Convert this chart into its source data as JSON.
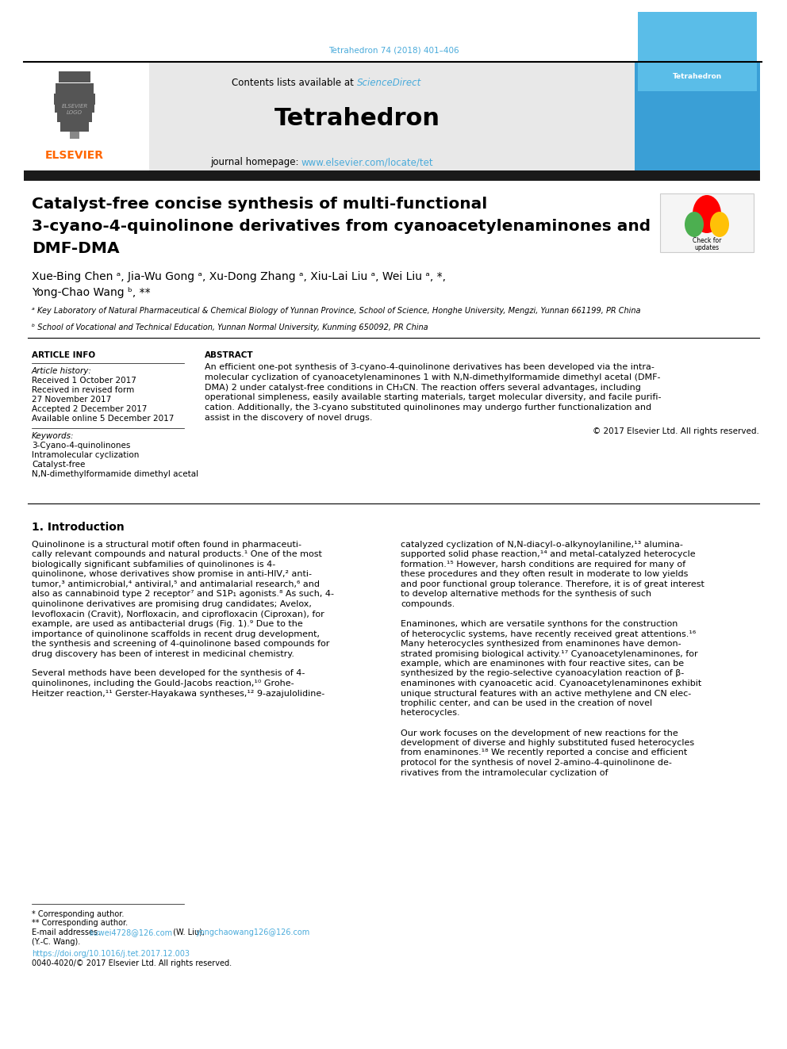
{
  "page_width": 9.92,
  "page_height": 13.23,
  "bg_color": "#ffffff",
  "header_top_text": "Tetrahedron 74 (2018) 401–406",
  "header_top_color": "#4AABDB",
  "header_bg_color": "#E8E8E8",
  "header_journal_name": "Tetrahedron",
  "header_sciencedirect_color": "#4AABDB",
  "header_homepage_url": "www.elsevier.com/locate/tet",
  "header_homepage_url_color": "#4AABDB",
  "elsevier_color": "#FF6600",
  "black_bar_color": "#1a1a1a",
  "article_title_line1": "Catalyst-free concise synthesis of multi-functional",
  "article_title_line2": "3-cyano-4-quinolinone derivatives from cyanoacetylenaminones and",
  "article_title_line3": "DMF-DMA",
  "affil_a": "ᵃ Key Laboratory of Natural Pharmaceutical & Chemical Biology of Yunnan Province, School of Science, Honghe University, Mengzi, Yunnan 661199, PR China",
  "affil_b": "ᵇ School of Vocational and Technical Education, Yunnan Normal University, Kunming 650092, PR China",
  "article_info_header": "ARTICLE INFO",
  "article_history_header": "Article history:",
  "received_1": "Received 1 October 2017",
  "received_2": "Received in revised form",
  "received_2b": "27 November 2017",
  "accepted": "Accepted 2 December 2017",
  "available": "Available online 5 December 2017",
  "keywords_header": "Keywords:",
  "keyword1": "3-Cyano-4-quinolinones",
  "keyword2": "Intramolecular cyclization",
  "keyword3": "Catalyst-free",
  "keyword4": "N,N-dimethylformamide dimethyl acetal",
  "abstract_header": "ABSTRACT",
  "copyright_text": "© 2017 Elsevier Ltd. All rights reserved.",
  "intro_header": "1. Introduction",
  "footnote_star": "* Corresponding author.",
  "footnote_dstar": "** Corresponding author.",
  "doi_text": "https://doi.org/10.1016/j.tet.2017.12.003",
  "issn_text": "0040-4020/© 2017 Elsevier Ltd. All rights reserved.",
  "link_color": "#4AABDB",
  "abstract_lines": [
    "An efficient one-pot synthesis of 3-cyano-4-quinolinone derivatives has been developed via the intra-",
    "molecular cyclization of cyanoacetylenaminones 1 with N,N-dimethylformamide dimethyl acetal (DMF-",
    "DMA) 2 under catalyst-free conditions in CH₃CN. The reaction offers several advantages, including",
    "operational simpleness, easily available starting materials, target molecular diversity, and facile purifi-",
    "cation. Additionally, the 3-cyano substituted quinolinones may undergo further functionalization and",
    "assist in the discovery of novel drugs."
  ],
  "intro_col1_lines": [
    "Quinolinone is a structural motif often found in pharmaceuti-",
    "cally relevant compounds and natural products.¹ One of the most",
    "biologically significant subfamilies of quinolinones is 4-",
    "quinolinone, whose derivatives show promise in anti-HIV,² anti-",
    "tumor,³ antimicrobial,⁴ antiviral,⁵ and antimalarial research,⁶ and",
    "also as cannabinoid type 2 receptor⁷ and S1P₁ agonists.⁸ As such, 4-",
    "quinolinone derivatives are promising drug candidates; Avelox,",
    "levofloxacin (Cravit), Norfloxacin, and ciprofloxacin (Ciproxan), for",
    "example, are used as antibacterial drugs (Fig. 1).⁹ Due to the",
    "importance of quinolinone scaffolds in recent drug development,",
    "the synthesis and screening of 4-quinolinone based compounds for",
    "drug discovery has been of interest in medicinal chemistry.",
    "",
    "Several methods have been developed for the synthesis of 4-",
    "quinolinones, including the Gould-Jacobs reaction,¹⁰ Grohe-",
    "Heitzer reaction,¹¹ Gerster-Hayakawa syntheses,¹² 9-azajulolidine-"
  ],
  "intro_col2_lines": [
    "catalyzed cyclization of N,N-diacyl-o-alkynoylaniline,¹³ alumina-",
    "supported solid phase reaction,¹⁴ and metal-catalyzed heterocycle",
    "formation.¹⁵ However, harsh conditions are required for many of",
    "these procedures and they often result in moderate to low yields",
    "and poor functional group tolerance. Therefore, it is of great interest",
    "to develop alternative methods for the synthesis of such",
    "compounds.",
    "",
    "Enaminones, which are versatile synthons for the construction",
    "of heterocyclic systems, have recently received great attentions.¹⁶",
    "Many heterocycles synthesized from enaminones have demon-",
    "strated promising biological activity.¹⁷ Cyanoacetylenaminones, for",
    "example, which are enaminones with four reactive sites, can be",
    "synthesized by the regio-selective cyanoacylation reaction of β-",
    "enaminones with cyanoacetic acid. Cyanoacetylenaminones exhibit",
    "unique structural features with an active methylene and CN elec-",
    "trophilic center, and can be used in the creation of novel",
    "heterocycles.",
    "",
    "Our work focuses on the development of new reactions for the",
    "development of diverse and highly substituted fused heterocycles",
    "from enaminones.¹⁸ We recently reported a concise and efficient",
    "protocol for the synthesis of novel 2-amino-4-quinolinone de-",
    "rivatives from the intramolecular cyclization of"
  ]
}
